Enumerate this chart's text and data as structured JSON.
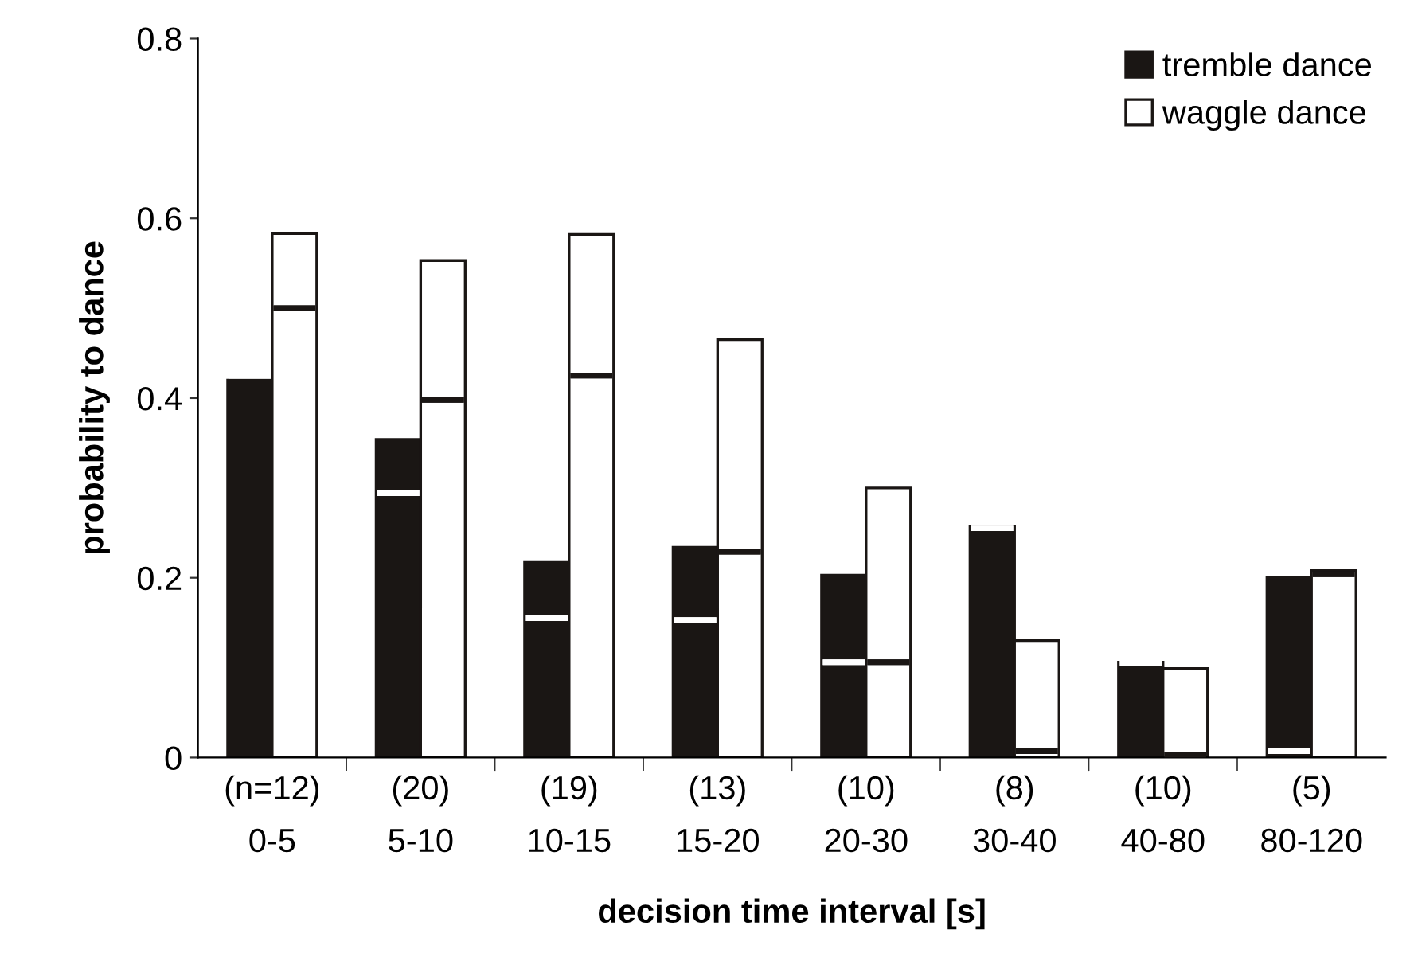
{
  "chart_data": {
    "type": "bar",
    "xlabel": "decision time interval [s]",
    "ylabel": "probability to dance",
    "categories": [
      "(n=12)\n0-5",
      "(20)\n5-10",
      "(19)\n10-15",
      "(13)\n15-20",
      "(10)\n20-30",
      "(8)\n30-40",
      "(10)\n40-80",
      "(5)\n80-120"
    ],
    "series": [
      {
        "name": "tremble dance",
        "color": "#1a1614",
        "values": [
          0.42,
          0.354,
          0.218,
          0.234,
          0.203,
          0.257,
          0.106,
          0.2
        ],
        "errors": [
          [
            0.425,
            0.425
          ],
          [
            0.294,
            0.294
          ],
          [
            0.155,
            0.155
          ],
          [
            0.153,
            0.153
          ],
          [
            0.106,
            0.106
          ],
          [
            0.255,
            0.255
          ],
          [
            0.105,
            0.105
          ],
          [
            0.007,
            0.007
          ]
        ]
      },
      {
        "name": "waggle dance",
        "color": "#ffffff",
        "values": [
          0.583,
          0.553,
          0.582,
          0.465,
          0.3,
          0.13,
          0.099,
          0.208
        ],
        "errors": [
          [
            0.5,
            0.5
          ],
          [
            0.398,
            0.398
          ],
          [
            0.425,
            0.425
          ],
          [
            0.229,
            0.229
          ],
          [
            0.106,
            0.106
          ],
          [
            0.007,
            0.007
          ],
          [
            0.003,
            0.003
          ],
          [
            0.204,
            0.204
          ]
        ]
      }
    ],
    "ylim": [
      0,
      0.8
    ],
    "yticks": [
      0,
      0.2,
      0.4,
      0.6,
      0.8
    ],
    "grid": false,
    "legend": "top right"
  }
}
